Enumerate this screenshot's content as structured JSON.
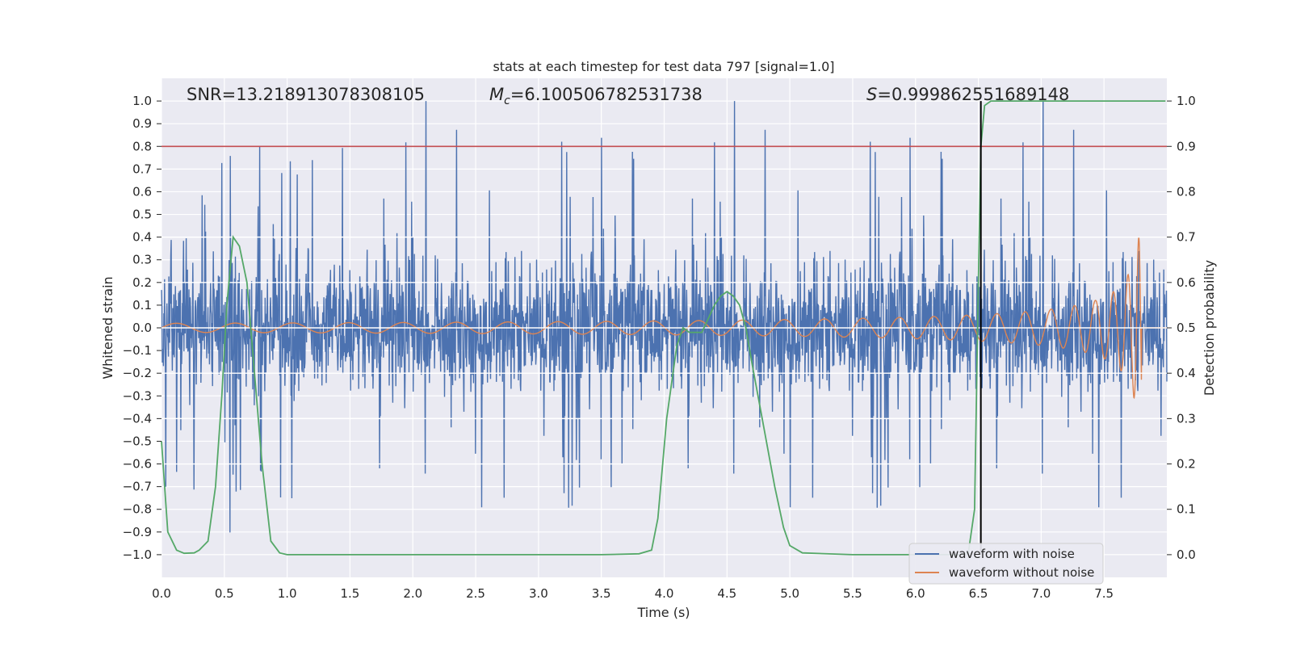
{
  "chart_data": {
    "type": "line",
    "title": "stats at each timestep for test data 797 [signal=1.0]",
    "xlabel": "Time (s)",
    "ylabel_left": "Whitened strain",
    "ylabel_right": "Detection probability",
    "xlim": [
      0.0,
      8.0
    ],
    "ylim_left": [
      -1.1,
      1.1
    ],
    "ylim_right": [
      -0.05,
      1.05
    ],
    "x_ticks": [
      "0.0",
      "0.5",
      "1.0",
      "1.5",
      "2.0",
      "2.5",
      "3.0",
      "3.5",
      "4.0",
      "4.5",
      "5.0",
      "5.5",
      "6.0",
      "6.5",
      "7.0",
      "7.5"
    ],
    "y_left_ticks": [
      "1.0",
      "0.9",
      "0.8",
      "0.7",
      "0.6",
      "0.5",
      "0.4",
      "0.3",
      "0.2",
      "0.1",
      "0.0",
      "−0.1",
      "−0.2",
      "−0.3",
      "−0.4",
      "−0.5",
      "−0.6",
      "−0.7",
      "−0.8",
      "−0.9",
      "−1.0"
    ],
    "y_right_ticks": [
      "1.0",
      "0.9",
      "0.8",
      "0.7",
      "0.6",
      "0.5",
      "0.4",
      "0.3",
      "0.2",
      "0.1",
      "0.0"
    ],
    "annotations": {
      "snr": "SNR=13.218913078308105",
      "mc_symbol": "M",
      "mc_sub": "c",
      "mc_value": "=6.100506782531738",
      "s_symbol": "S",
      "s_value": "=0.999862551689148"
    },
    "threshold_line": {
      "y_right": 0.9,
      "color": "#c44e52"
    },
    "event_line": {
      "x": 6.52,
      "color": "#000000"
    },
    "series": [
      {
        "name": "waveform with noise",
        "color": "#4c72b0",
        "axis": "left",
        "kind": "noise",
        "approx_envelope": [
          -1.0,
          1.0
        ]
      },
      {
        "name": "waveform without noise",
        "color": "#dd8452",
        "axis": "left",
        "kind": "chirp",
        "start_amplitude": 0.02,
        "peak_amplitude": 0.4,
        "merger_time": 7.8
      },
      {
        "name": "detection probability",
        "color": "#55a868",
        "axis": "right",
        "x": [
          0.0,
          0.05,
          0.12,
          0.18,
          0.26,
          0.3,
          0.37,
          0.43,
          0.48,
          0.52,
          0.57,
          0.62,
          0.68,
          0.74,
          0.8,
          0.87,
          0.94,
          1.0,
          1.5,
          2.0,
          2.5,
          3.0,
          3.5,
          3.8,
          3.9,
          3.95,
          4.02,
          4.1,
          4.15,
          4.2,
          4.25,
          4.3,
          4.35,
          4.4,
          4.45,
          4.5,
          4.55,
          4.6,
          4.65,
          4.7,
          4.78,
          4.88,
          4.95,
          5.0,
          5.1,
          5.5,
          6.0,
          6.35,
          6.42,
          6.47,
          6.5,
          6.52,
          6.55,
          6.6,
          6.67,
          6.9,
          7.2,
          7.5,
          7.99
        ],
        "y": [
          0.25,
          0.05,
          0.01,
          0.003,
          0.004,
          0.01,
          0.03,
          0.15,
          0.35,
          0.55,
          0.7,
          0.68,
          0.6,
          0.4,
          0.2,
          0.03,
          0.004,
          0.0,
          0.0,
          0.0,
          0.0,
          0.0,
          0.0,
          0.002,
          0.01,
          0.08,
          0.3,
          0.46,
          0.5,
          0.49,
          0.49,
          0.49,
          0.52,
          0.55,
          0.57,
          0.58,
          0.57,
          0.55,
          0.5,
          0.42,
          0.3,
          0.15,
          0.06,
          0.02,
          0.004,
          0.0,
          0.0,
          0.0,
          0.003,
          0.1,
          0.6,
          0.9,
          0.99,
          1.0,
          1.0,
          1.0,
          1.0,
          1.0,
          1.0
        ]
      }
    ],
    "legend": {
      "placement": "lower-right",
      "entries": [
        "waveform with noise",
        "waveform without noise"
      ]
    },
    "grid": true,
    "background": "#eaeaf2"
  }
}
